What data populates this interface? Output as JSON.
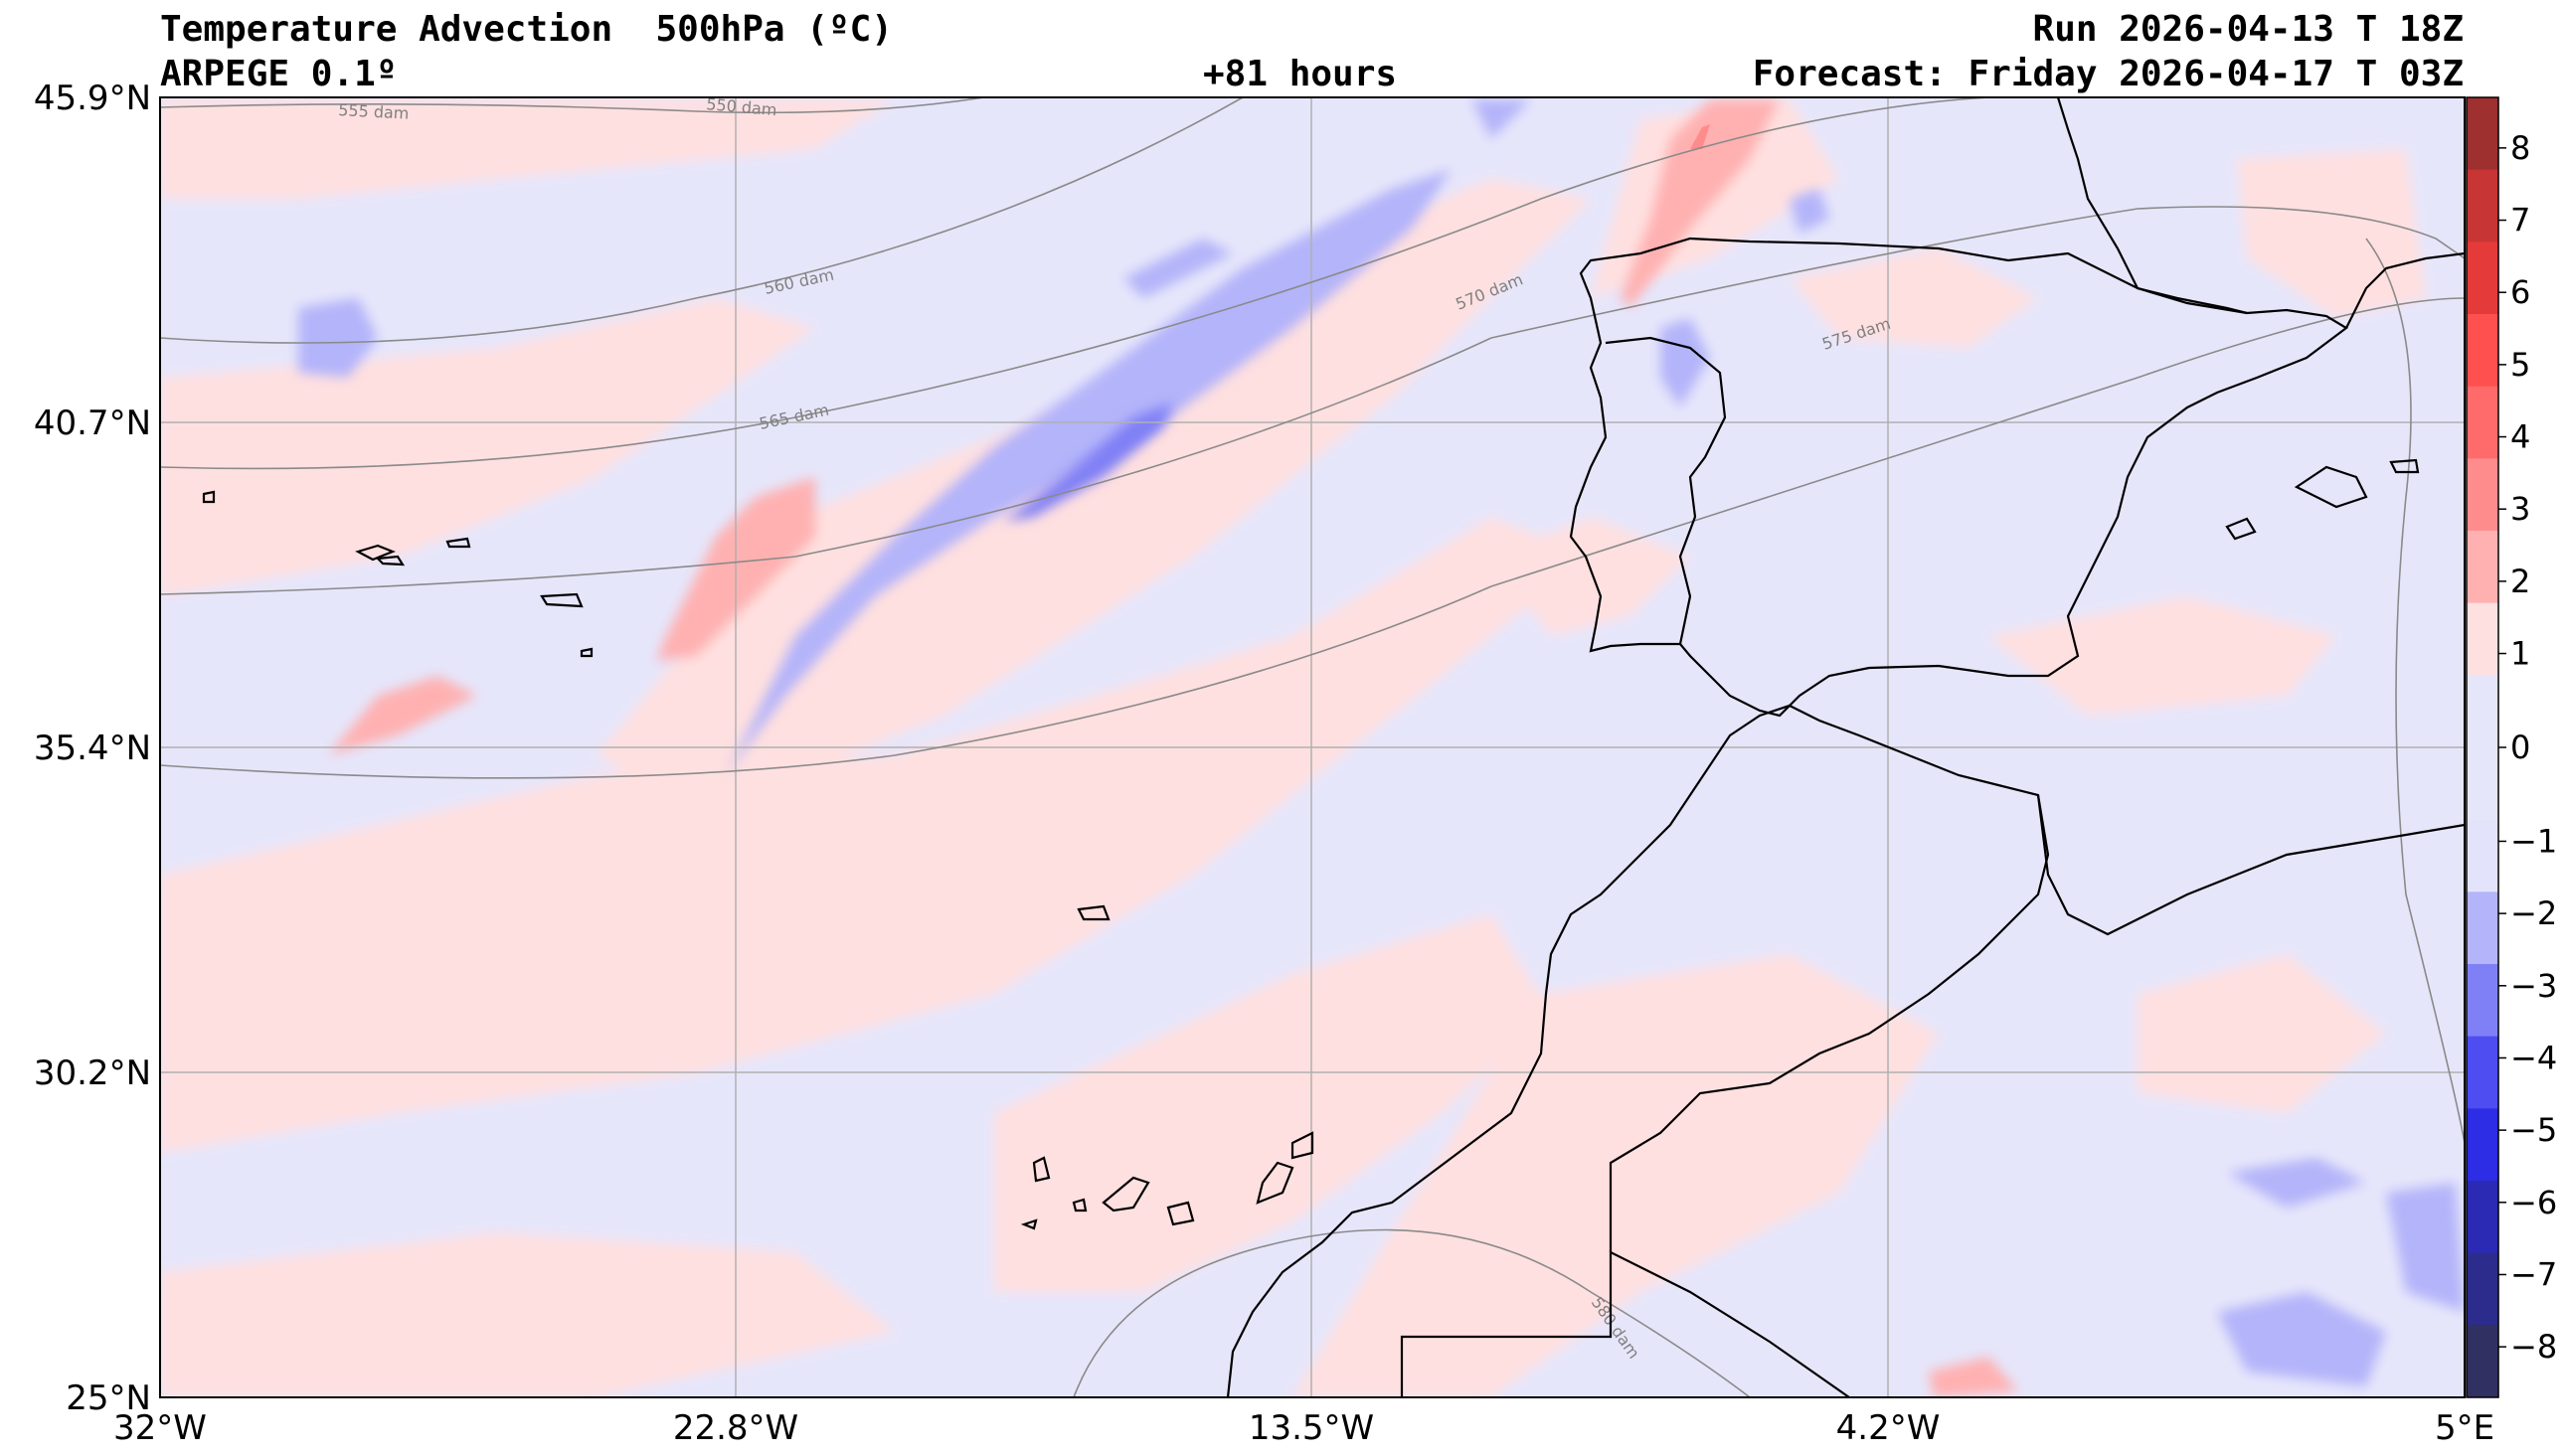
{
  "header": {
    "title": "Temperature Advection  500hPa (ºC)",
    "model": "ARPEGE 0.1º",
    "lead_time": "+81 hours",
    "run": "Run 2026-04-13 T 18Z",
    "forecast": "Forecast: Friday 2026-04-17 T 03Z"
  },
  "map": {
    "lat_ticks": [
      "45.9°N",
      "40.7°N",
      "35.4°N",
      "30.2°N",
      "25°N"
    ],
    "lon_ticks": [
      "32°W",
      "22.8°W",
      "13.5°W",
      "4.2°W",
      "5°E"
    ],
    "contour_labels": [
      "555 dam",
      "550 dam",
      "560 dam",
      "565 dam",
      "570 dam",
      "575 dam",
      "580 dam"
    ]
  },
  "colorbar": {
    "ticks": [
      "8",
      "7",
      "6",
      "5",
      "4",
      "3",
      "2",
      "1",
      "0",
      "−1",
      "−2",
      "−3",
      "−4",
      "−5",
      "−6",
      "−7",
      "−8"
    ],
    "colors_warm": [
      "#9e3030",
      "#c83535",
      "#e53a3a",
      "#ff5050",
      "#ff6a6a",
      "#ff8c8c",
      "#ffb1b1",
      "#ffe0e0"
    ],
    "colors_cold": [
      "#e3e3fc",
      "#b4b4fa",
      "#8080f6",
      "#4d4df2",
      "#2d2de6",
      "#2a2ab4",
      "#2c2c8c",
      "#303062"
    ],
    "neutral_color": "#e6e6fb"
  }
}
